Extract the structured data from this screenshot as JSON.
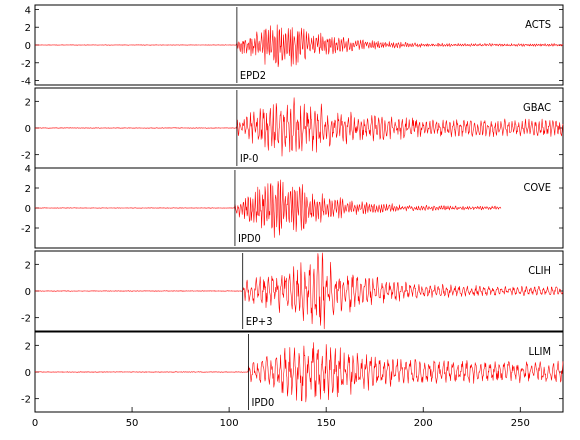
{
  "chart_data": {
    "type": "line",
    "title": "",
    "xlabel": "",
    "ylabel": "",
    "xlim": [
      0,
      272
    ],
    "x_ticks": [
      0,
      50,
      100,
      150,
      200,
      250
    ],
    "trace_color": "#ff0000",
    "panels": [
      {
        "station": "ACTS",
        "phase": "EPD2",
        "pick_time": 104,
        "ylim": [
          -4.5,
          4.5
        ],
        "y_ticks": [
          4,
          2,
          0,
          -2,
          -4
        ],
        "signal": {
          "onset": 104,
          "peak_time": 128,
          "peak_amp": 3.2,
          "end_time": 272,
          "tail_amp": 0.05,
          "period": 1.2
        }
      },
      {
        "station": "GBAC",
        "phase": "IP-0",
        "pick_time": 104,
        "ylim": [
          -3,
          3
        ],
        "y_ticks": [
          2,
          0,
          -2
        ],
        "signal": {
          "onset": 104,
          "peak_time": 135,
          "peak_amp": 2.8,
          "end_time": 272,
          "tail_amp": 0.25,
          "period": 1.8
        }
      },
      {
        "station": "COVE",
        "phase": "IPD0",
        "pick_time": 103,
        "ylim": [
          -4,
          4
        ],
        "y_ticks": [
          4,
          2,
          0,
          -2
        ],
        "signal": {
          "onset": 103,
          "peak_time": 128,
          "peak_amp": 3.6,
          "end_time": 240,
          "tail_amp": 0.05,
          "period": 1.3
        }
      },
      {
        "station": "CLIH",
        "phase": "EP+3",
        "pick_time": 107,
        "ylim": [
          -3,
          3
        ],
        "y_ticks": [
          2,
          0,
          -2
        ],
        "signal": {
          "onset": 107,
          "peak_time": 148,
          "peak_amp": 3.0,
          "end_time": 272,
          "tail_amp": 0.12,
          "period": 2.2
        }
      },
      {
        "station": "LLIM",
        "phase": "IPD0",
        "pick_time": 110,
        "ylim": [
          -3,
          3
        ],
        "y_ticks": [
          2,
          0,
          -2
        ],
        "signal": {
          "onset": 110,
          "peak_time": 145,
          "peak_amp": 2.8,
          "end_time": 272,
          "tail_amp": 0.3,
          "period": 2.4
        }
      }
    ]
  }
}
